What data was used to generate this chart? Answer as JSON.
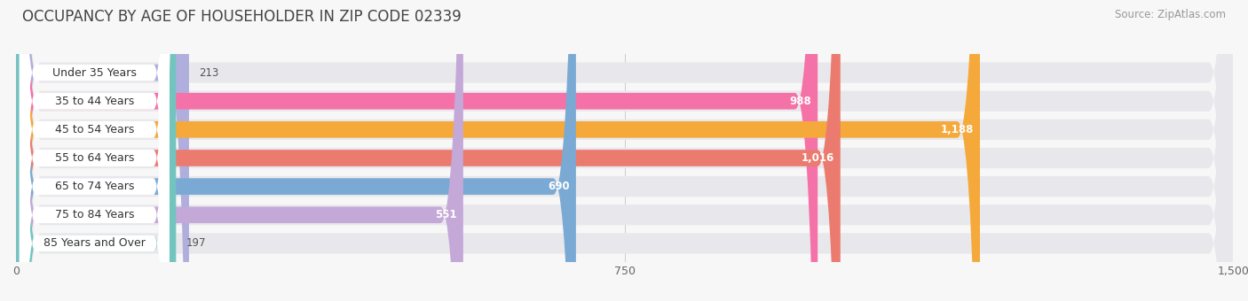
{
  "title": "OCCUPANCY BY AGE OF HOUSEHOLDER IN ZIP CODE 02339",
  "source": "Source: ZipAtlas.com",
  "categories": [
    "Under 35 Years",
    "35 to 44 Years",
    "45 to 54 Years",
    "55 to 64 Years",
    "65 to 74 Years",
    "75 to 84 Years",
    "85 Years and Over"
  ],
  "values": [
    213,
    988,
    1188,
    1016,
    690,
    551,
    197
  ],
  "bar_colors": [
    "#b0aedd",
    "#f472a8",
    "#f5a93a",
    "#eb7b6e",
    "#7aaad4",
    "#c4a8d8",
    "#72c4bf"
  ],
  "xlim_max": 1500,
  "xticks": [
    0,
    750,
    1500
  ],
  "xtick_labels": [
    "0",
    "750",
    "1,500"
  ],
  "background_color": "#f7f7f7",
  "bar_bg_color": "#e8e8ec",
  "title_fontsize": 12,
  "source_fontsize": 8.5,
  "value_threshold": 400
}
